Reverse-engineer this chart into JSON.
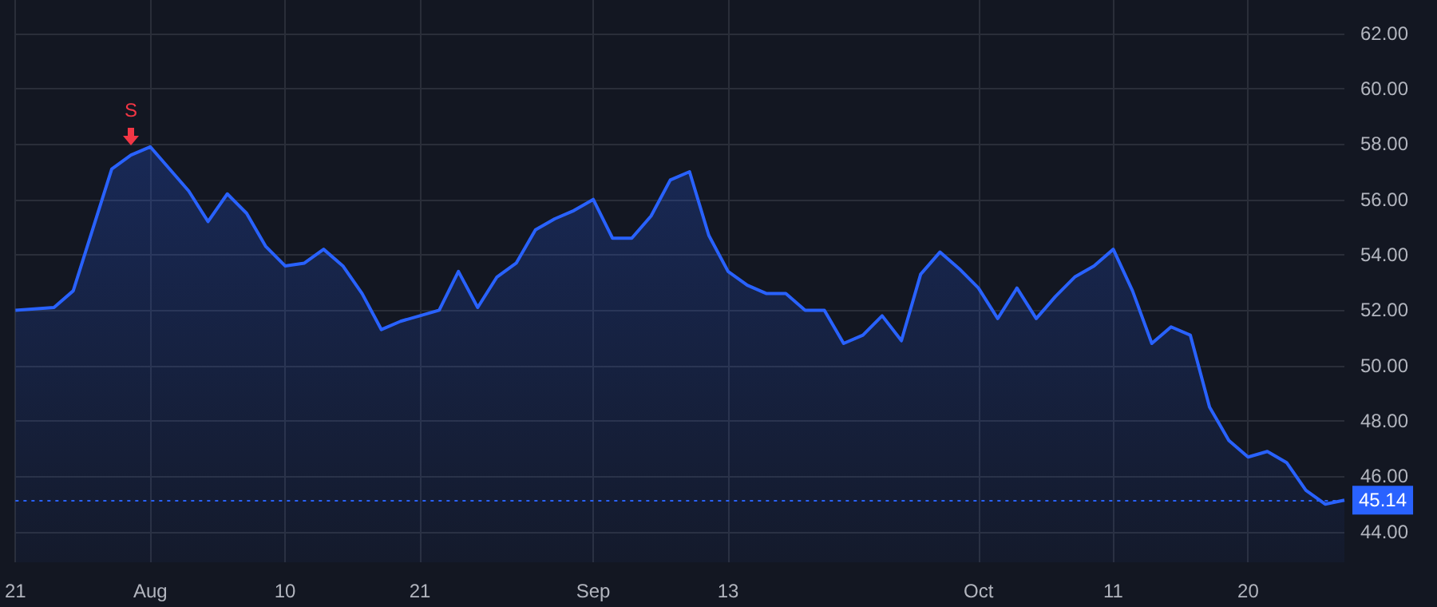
{
  "chart_data": {
    "type": "area",
    "categories": [
      "21",
      null,
      null,
      null,
      null,
      null,
      null,
      "Aug",
      null,
      null,
      null,
      null,
      null,
      null,
      "10",
      null,
      null,
      null,
      null,
      null,
      null,
      "21",
      null,
      null,
      null,
      null,
      null,
      null,
      null,
      null,
      "Sep",
      null,
      null,
      null,
      null,
      null,
      null,
      "13",
      null,
      null,
      null,
      null,
      null,
      null,
      null,
      null,
      null,
      null,
      null,
      null,
      "Oct",
      null,
      null,
      null,
      null,
      null,
      null,
      "11",
      null,
      null,
      null,
      null,
      null,
      null,
      "20",
      null,
      null,
      null,
      null,
      null
    ],
    "series": [
      {
        "color": "#2962ff",
        "values": [
          52.0,
          52.05,
          52.1,
          52.7,
          54.9,
          57.1,
          57.6,
          57.9,
          57.1,
          56.3,
          55.2,
          56.2,
          55.5,
          54.3,
          53.6,
          53.7,
          54.2,
          53.6,
          52.6,
          51.3,
          51.6,
          51.8,
          52.0,
          53.4,
          52.1,
          53.2,
          53.7,
          54.9,
          55.3,
          55.6,
          56.0,
          54.6,
          54.6,
          55.4,
          56.7,
          57.0,
          54.7,
          53.4,
          52.9,
          52.6,
          52.6,
          52.0,
          52.0,
          50.8,
          51.1,
          51.8,
          50.9,
          53.3,
          54.1,
          53.5,
          52.8,
          51.7,
          52.8,
          51.7,
          52.5,
          53.2,
          53.6,
          54.2,
          52.7,
          50.8,
          51.4,
          51.1,
          48.5,
          47.3,
          46.7,
          46.9,
          46.5,
          45.5,
          45.0,
          45.14
        ]
      }
    ],
    "ylim": [
      42.9,
      63.2
    ],
    "yticks": [
      {
        "value": 44,
        "label": "44.00"
      },
      {
        "value": 46,
        "label": "46.00"
      },
      {
        "value": 48,
        "label": "48.00"
      },
      {
        "value": 50,
        "label": "50.00"
      },
      {
        "value": 52,
        "label": "52.00"
      },
      {
        "value": 54,
        "label": "54.00"
      },
      {
        "value": 56,
        "label": "56.00"
      },
      {
        "value": 58,
        "label": "58.00"
      },
      {
        "value": 60,
        "label": "60.00"
      },
      {
        "value": 62,
        "label": "62.00"
      }
    ],
    "ref_lines": [
      {
        "axis": "y",
        "value": 45.14,
        "label": "45.14",
        "color": "#2962ff",
        "line_style": "dotted"
      }
    ],
    "annotations": [
      {
        "text": "S",
        "y": 57.6
      }
    ],
    "grid": true,
    "marker": "none",
    "line_style": "solid"
  }
}
